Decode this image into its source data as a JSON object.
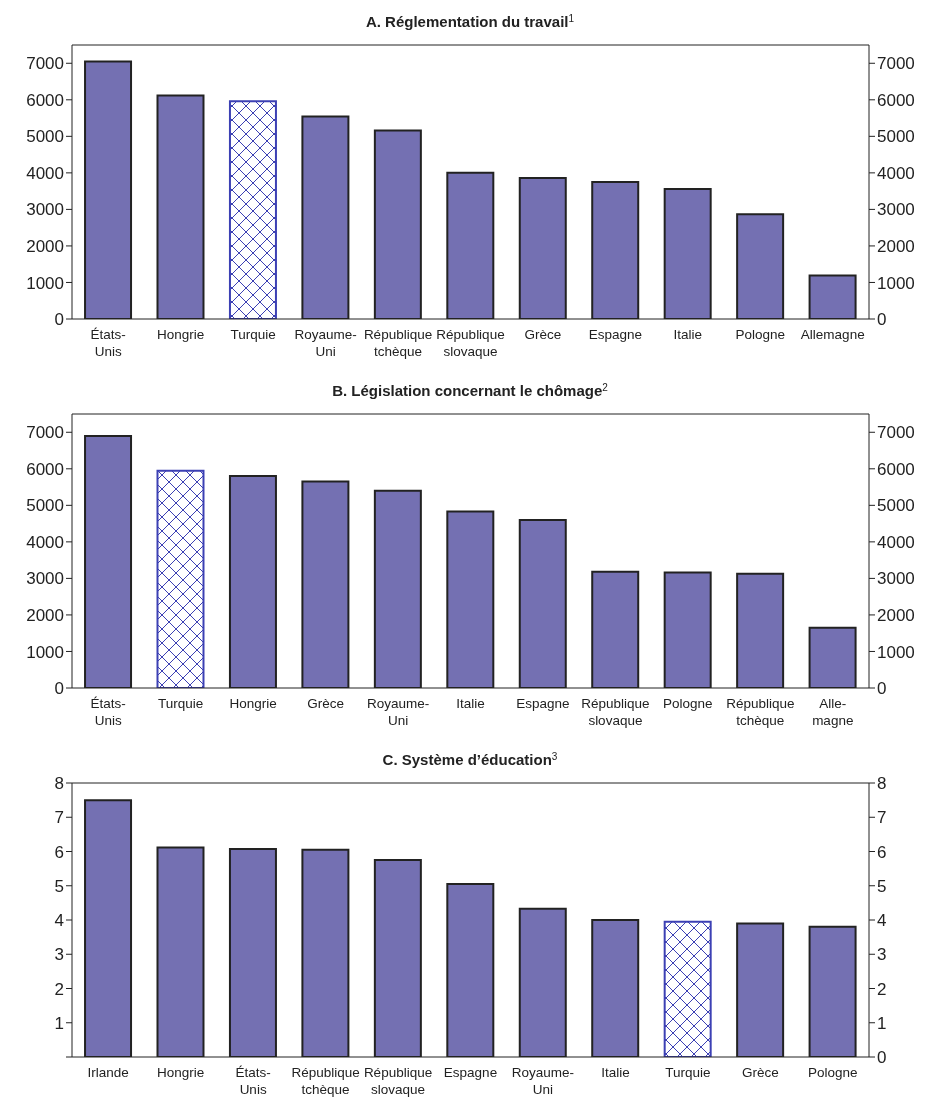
{
  "chart_data": [
    {
      "type": "bar",
      "title": "A. Réglementation du travail$^{1}$",
      "categories": [
        "États-\nUnis",
        "Hongrie",
        "Turquie",
        "Royaume-\nUni",
        "République\ntchèque",
        "République\nslovaque",
        "Grèce",
        "Espagne",
        "Italie",
        "Pologne",
        "Allemagne"
      ],
      "values": [
        7050,
        6120,
        5960,
        5540,
        5160,
        4000,
        3860,
        3750,
        3560,
        2870,
        1190
      ],
      "color": "#7470b2",
      "colors": [
        "#7470b2",
        "#7470b2",
        "#3c40b4",
        "#7470b2",
        "#7470b2",
        "#7470b2",
        "#7470b2",
        "#7470b2",
        "#7470b2",
        "#7470b2",
        "#7470b2"
      ],
      "ylim": [
        0,
        7500
      ],
      "yticks": [
        0,
        1000,
        2000,
        3000,
        4000,
        5000,
        6000,
        7000
      ],
      "y2lim": [
        0,
        7500
      ],
      "y2ticks": [
        0,
        1000,
        2000,
        3000,
        4000,
        5000,
        6000,
        7000
      ],
      "grid": false,
      "legend": false
    },
    {
      "type": "bar",
      "title": "B. Législation concernant le chômage$^{2}$",
      "categories": [
        "États-\nUnis",
        "Turquie",
        "Hongrie",
        "Grèce",
        "Royaume-\nUni",
        "Italie",
        "Espagne",
        "République\nslovaque",
        "Pologne",
        "République\ntchèque",
        "Alle-\nmagne"
      ],
      "values": [
        6900,
        5950,
        5800,
        5650,
        5400,
        4830,
        4600,
        3180,
        3160,
        3130,
        1650
      ],
      "color": "#7470b2",
      "colors": [
        "#7470b2",
        "#3c40b4",
        "#7470b2",
        "#7470b2",
        "#7470b2",
        "#7470b2",
        "#7470b2",
        "#7470b2",
        "#7470b2",
        "#7470b2",
        "#7470b2"
      ],
      "ylim": [
        0,
        7500
      ],
      "yticks": [
        0,
        1000,
        2000,
        3000,
        4000,
        5000,
        6000,
        7000
      ],
      "y2lim": [
        0,
        7500
      ],
      "y2ticks": [
        0,
        1000,
        2000,
        3000,
        4000,
        5000,
        6000,
        7000
      ],
      "grid": false,
      "legend": false
    },
    {
      "type": "bar",
      "title": "C. Système d’éducation$^{3}$",
      "categories": [
        "Irlande",
        "Hongrie",
        "États-\nUnis",
        "République\ntchèque",
        "République\nslovaque",
        "Espagne",
        "Royaume-\nUni",
        "Italie",
        "Turquie",
        "Grèce",
        "Pologne"
      ],
      "values": [
        7.5,
        6.12,
        6.07,
        6.05,
        5.75,
        5.05,
        4.33,
        4.0,
        3.95,
        3.9,
        3.8
      ],
      "color": "#7470b2",
      "colors": [
        "#7470b2",
        "#7470b2",
        "#7470b2",
        "#7470b2",
        "#7470b2",
        "#7470b2",
        "#7470b2",
        "#7470b2",
        "#3c40b4",
        "#7470b2",
        "#7470b2"
      ],
      "ylim": [
        0,
        8
      ],
      "yticks": [
        {
          "value": 0,
          "label": null
        },
        1,
        2,
        3,
        4,
        5,
        6,
        7,
        8
      ],
      "y2lim": [
        0,
        8
      ],
      "y2ticks": [
        0,
        1,
        2,
        3,
        4,
        5,
        6,
        7,
        8
      ],
      "grid": false,
      "legend": false
    }
  ]
}
